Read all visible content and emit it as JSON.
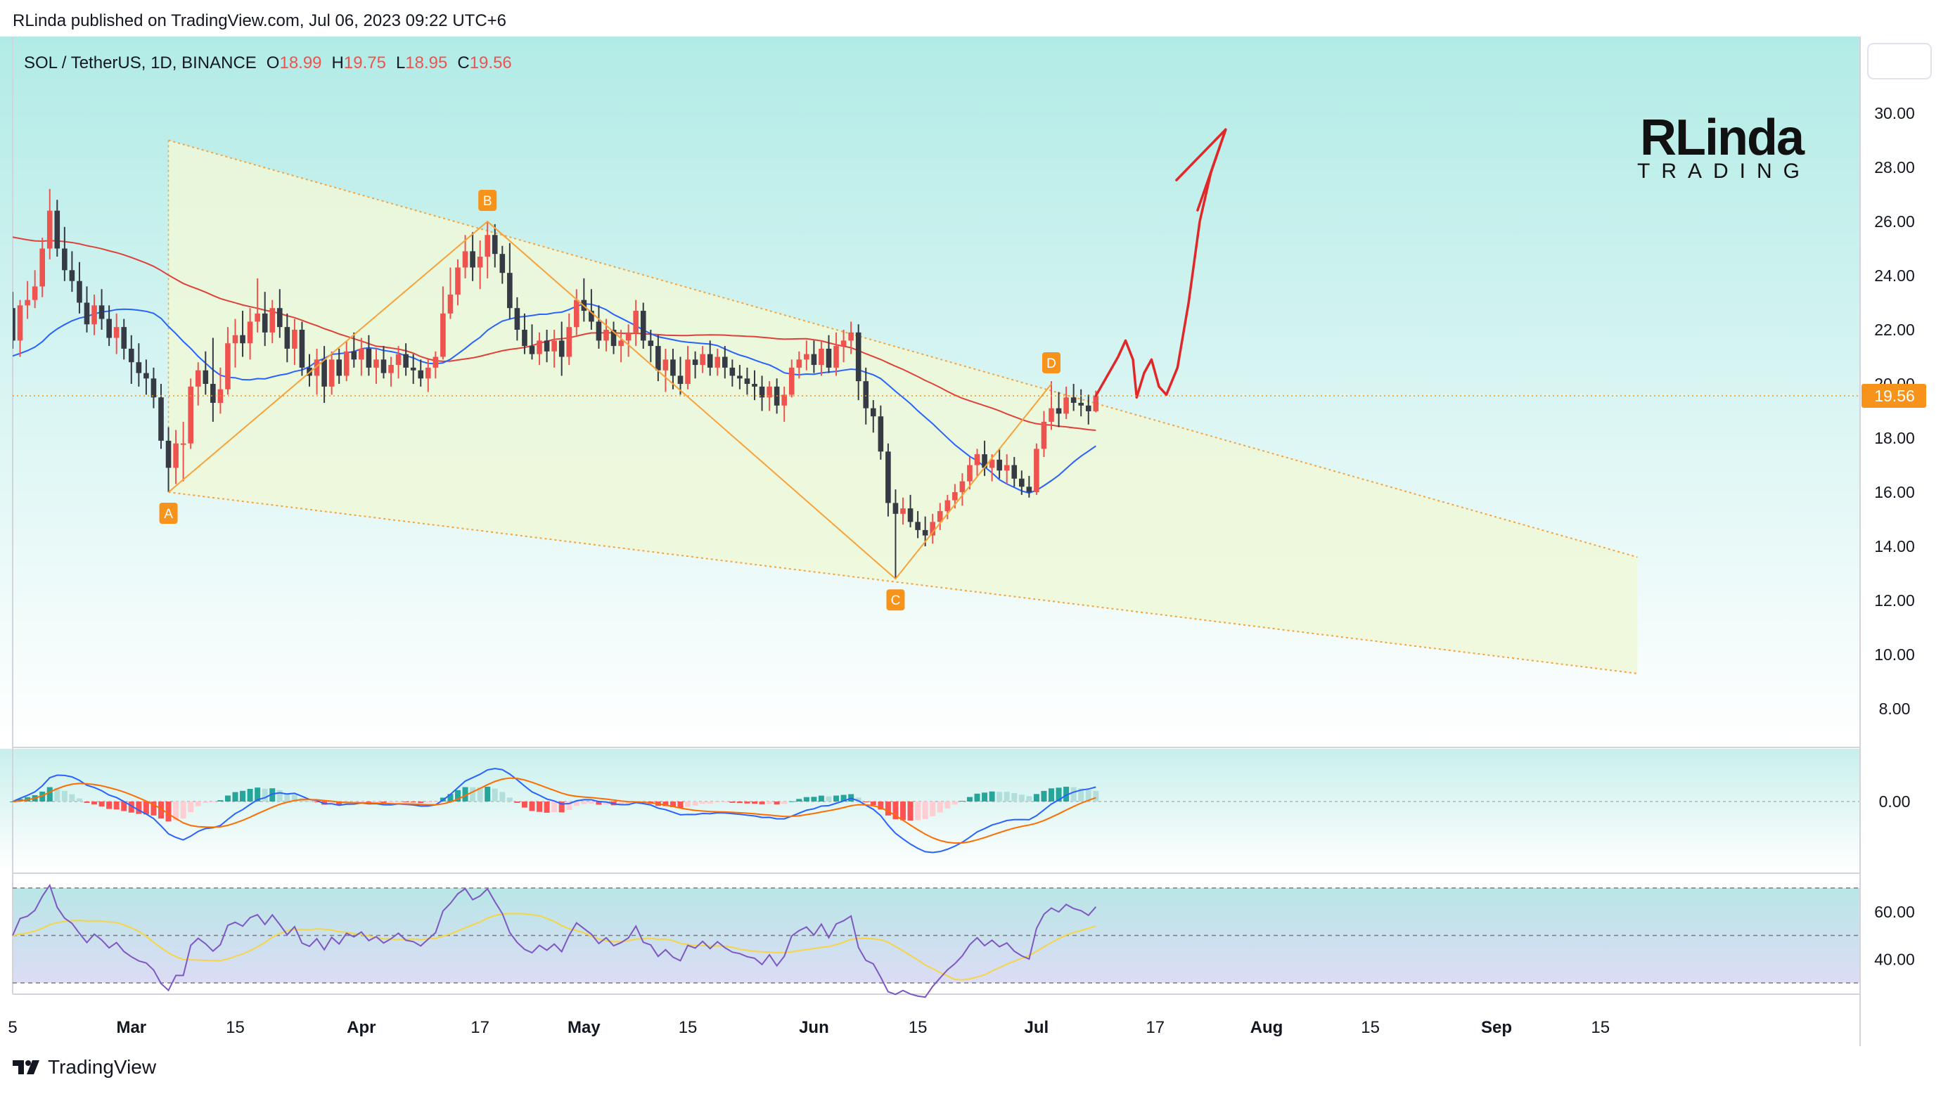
{
  "publisher_line": "RLinda published on TradingView.com, Jul 06, 2023 09:22 UTC+6",
  "footer": {
    "brand": "TradingView"
  },
  "watermark": {
    "line1": "RLinda",
    "line2": "TRADING"
  },
  "colors": {
    "bull": "#ef5350",
    "bear": "#363a45",
    "sma_red": "#e0403a",
    "sma_blue": "#2962ff",
    "pattern_line": "#f7a23b",
    "label_orange": "#f7931a",
    "wedge_fill": "#eef8d8",
    "arrow": "#e02828",
    "macd_line": "#2962ff",
    "signal_line": "#ff6d00",
    "rsi_line": "#7e57c2",
    "rsi_ma": "#f5d547",
    "price_tag": "#f7931a"
  },
  "chart_data": [
    {
      "type": "candlestick",
      "title": "SOL / TetherUS, 1D, BINANCE",
      "ohlc_header": {
        "O": "18.99",
        "H": "19.75",
        "L": "18.95",
        "C": "19.56"
      },
      "last_price_label": "19.56",
      "ylim": [
        6.5,
        33
      ],
      "y_ticks": [
        "8.00",
        "10.00",
        "12.00",
        "14.00",
        "16.00",
        "18.00",
        "20.00",
        "22.00",
        "24.00",
        "26.00",
        "28.00",
        "30.00"
      ],
      "x_ticks": [
        {
          "label": "5",
          "day": 0
        },
        {
          "label": "Mar",
          "day": 16
        },
        {
          "label": "15",
          "day": 30
        },
        {
          "label": "Apr",
          "day": 47
        },
        {
          "label": "17",
          "day": 63
        },
        {
          "label": "May",
          "day": 77
        },
        {
          "label": "15",
          "day": 91
        },
        {
          "label": "Jun",
          "day": 108
        },
        {
          "label": "15",
          "day": 122
        },
        {
          "label": "Jul",
          "day": 138
        },
        {
          "label": "17",
          "day": 154
        },
        {
          "label": "Aug",
          "day": 169
        },
        {
          "label": "15",
          "day": 183
        },
        {
          "label": "Sep",
          "day": 200
        },
        {
          "label": "15",
          "day": 214
        }
      ],
      "candles": [
        [
          0,
          22.8,
          23.4,
          21.3,
          21.6
        ],
        [
          1,
          21.6,
          23.1,
          21.0,
          22.9
        ],
        [
          2,
          22.9,
          23.8,
          22.4,
          23.1
        ],
        [
          3,
          23.1,
          24.2,
          22.8,
          23.6
        ],
        [
          4,
          23.6,
          25.4,
          23.2,
          25.0
        ],
        [
          5,
          25.0,
          27.2,
          24.6,
          26.4
        ],
        [
          6,
          26.4,
          26.8,
          24.7,
          25.0
        ],
        [
          7,
          25.0,
          25.8,
          23.8,
          24.2
        ],
        [
          8,
          24.2,
          24.9,
          23.4,
          23.8
        ],
        [
          9,
          23.8,
          24.5,
          22.6,
          23.0
        ],
        [
          10,
          23.0,
          23.6,
          21.9,
          22.2
        ],
        [
          11,
          22.2,
          23.3,
          21.8,
          22.9
        ],
        [
          12,
          22.9,
          23.5,
          22.0,
          22.4
        ],
        [
          13,
          22.4,
          22.9,
          21.4,
          21.7
        ],
        [
          14,
          21.7,
          22.6,
          21.1,
          22.1
        ],
        [
          15,
          22.1,
          22.4,
          20.9,
          21.3
        ],
        [
          16,
          21.3,
          21.8,
          20.0,
          20.8
        ],
        [
          17,
          20.8,
          21.5,
          19.9,
          20.4
        ],
        [
          18,
          20.4,
          20.9,
          19.6,
          20.2
        ],
        [
          19,
          20.2,
          20.6,
          19.1,
          19.5
        ],
        [
          20,
          19.5,
          20.0,
          17.6,
          17.9
        ],
        [
          21,
          17.9,
          18.4,
          16.0,
          16.9
        ],
        [
          22,
          16.9,
          18.3,
          16.3,
          17.8
        ],
        [
          23,
          17.8,
          18.6,
          16.4,
          17.8
        ],
        [
          24,
          17.8,
          20.2,
          17.6,
          19.9
        ],
        [
          25,
          19.9,
          20.8,
          19.2,
          20.5
        ],
        [
          26,
          20.5,
          21.2,
          19.6,
          20.0
        ],
        [
          27,
          20.0,
          21.7,
          18.6,
          19.3
        ],
        [
          28,
          19.3,
          20.6,
          18.9,
          19.8
        ],
        [
          29,
          19.8,
          22.1,
          19.6,
          21.5
        ],
        [
          30,
          21.5,
          22.4,
          20.6,
          21.8
        ],
        [
          31,
          21.8,
          22.7,
          21.0,
          21.5
        ],
        [
          32,
          21.5,
          22.8,
          20.9,
          22.3
        ],
        [
          33,
          22.3,
          23.9,
          21.9,
          22.6
        ],
        [
          34,
          22.6,
          23.4,
          21.4,
          21.9
        ],
        [
          35,
          21.9,
          23.1,
          21.5,
          22.8
        ],
        [
          36,
          22.8,
          23.5,
          21.7,
          22.1
        ],
        [
          37,
          22.1,
          22.6,
          20.8,
          21.3
        ],
        [
          38,
          21.3,
          22.4,
          20.7,
          22.0
        ],
        [
          39,
          22.0,
          22.3,
          20.3,
          20.6
        ],
        [
          40,
          20.6,
          21.1,
          19.9,
          20.3
        ],
        [
          41,
          20.3,
          21.3,
          19.6,
          20.9
        ],
        [
          42,
          20.9,
          21.4,
          19.3,
          19.9
        ],
        [
          43,
          19.9,
          21.2,
          19.6,
          20.9
        ],
        [
          44,
          20.9,
          21.3,
          20.0,
          20.3
        ],
        [
          45,
          20.3,
          21.6,
          20.1,
          21.2
        ],
        [
          46,
          21.2,
          21.9,
          20.6,
          20.9
        ],
        [
          47,
          20.9,
          21.7,
          20.3,
          21.3
        ],
        [
          48,
          21.3,
          21.8,
          20.3,
          20.6
        ],
        [
          49,
          20.6,
          21.3,
          20.0,
          20.9
        ],
        [
          50,
          20.9,
          21.4,
          20.2,
          20.4
        ],
        [
          51,
          20.4,
          21.0,
          19.9,
          20.7
        ],
        [
          52,
          20.7,
          21.4,
          20.2,
          21.1
        ],
        [
          53,
          21.1,
          21.5,
          20.3,
          20.6
        ],
        [
          54,
          20.6,
          21.1,
          20.0,
          20.5
        ],
        [
          55,
          20.5,
          20.9,
          19.9,
          20.2
        ],
        [
          56,
          20.2,
          20.9,
          19.7,
          20.6
        ],
        [
          57,
          20.6,
          21.2,
          20.2,
          21.0
        ],
        [
          58,
          21.0,
          23.6,
          20.9,
          22.6
        ],
        [
          59,
          22.6,
          24.3,
          22.4,
          23.3
        ],
        [
          60,
          23.3,
          24.6,
          22.9,
          24.3
        ],
        [
          61,
          24.3,
          25.5,
          23.9,
          24.9
        ],
        [
          62,
          24.9,
          25.6,
          23.8,
          24.3
        ],
        [
          63,
          24.3,
          25.3,
          23.5,
          24.7
        ],
        [
          64,
          24.7,
          26.0,
          23.9,
          25.5
        ],
        [
          65,
          25.5,
          25.9,
          24.3,
          24.8
        ],
        [
          66,
          24.8,
          25.1,
          23.7,
          24.1
        ],
        [
          67,
          24.1,
          25.2,
          22.4,
          22.8
        ],
        [
          68,
          22.8,
          23.2,
          21.6,
          22.0
        ],
        [
          69,
          22.0,
          22.6,
          21.1,
          21.4
        ],
        [
          70,
          21.4,
          22.2,
          20.9,
          21.1
        ],
        [
          71,
          21.1,
          21.9,
          20.7,
          21.6
        ],
        [
          72,
          21.6,
          22.0,
          20.8,
          21.2
        ],
        [
          73,
          21.2,
          22.0,
          20.6,
          21.6
        ],
        [
          74,
          21.6,
          22.3,
          20.3,
          21.0
        ],
        [
          75,
          21.0,
          22.6,
          20.7,
          22.1
        ],
        [
          76,
          22.1,
          23.5,
          21.8,
          23.1
        ],
        [
          77,
          23.1,
          23.9,
          22.3,
          22.7
        ],
        [
          78,
          22.7,
          23.5,
          22.0,
          22.3
        ],
        [
          79,
          22.3,
          22.9,
          21.3,
          21.6
        ],
        [
          80,
          21.6,
          22.4,
          21.2,
          22.0
        ],
        [
          81,
          22.0,
          22.3,
          21.1,
          21.4
        ],
        [
          82,
          21.4,
          22.0,
          20.8,
          21.6
        ],
        [
          83,
          21.6,
          22.2,
          21.0,
          21.9
        ],
        [
          84,
          21.9,
          23.1,
          21.4,
          22.7
        ],
        [
          85,
          22.7,
          23.0,
          21.3,
          21.6
        ],
        [
          86,
          21.6,
          22.0,
          20.8,
          21.4
        ],
        [
          87,
          21.4,
          21.8,
          20.1,
          20.5
        ],
        [
          88,
          20.5,
          21.3,
          19.7,
          20.9
        ],
        [
          89,
          20.9,
          21.3,
          19.8,
          20.3
        ],
        [
          90,
          20.3,
          21.0,
          19.6,
          20.0
        ],
        [
          91,
          20.0,
          21.4,
          19.8,
          20.9
        ],
        [
          92,
          20.9,
          21.2,
          20.2,
          20.7
        ],
        [
          93,
          20.7,
          21.4,
          20.4,
          21.1
        ],
        [
          94,
          21.1,
          21.6,
          20.3,
          20.6
        ],
        [
          95,
          20.6,
          21.3,
          20.3,
          21.0
        ],
        [
          96,
          21.0,
          21.4,
          20.2,
          20.6
        ],
        [
          97,
          20.6,
          20.9,
          19.9,
          20.3
        ],
        [
          98,
          20.3,
          20.7,
          19.8,
          20.2
        ],
        [
          99,
          20.2,
          20.6,
          19.6,
          20.0
        ],
        [
          100,
          20.0,
          20.5,
          19.4,
          19.9
        ],
        [
          101,
          19.9,
          20.3,
          19.0,
          19.5
        ],
        [
          102,
          19.5,
          20.1,
          19.0,
          19.9
        ],
        [
          103,
          19.9,
          20.2,
          18.9,
          19.2
        ],
        [
          104,
          19.2,
          19.9,
          18.6,
          19.6
        ],
        [
          105,
          19.6,
          20.9,
          19.5,
          20.6
        ],
        [
          106,
          20.6,
          21.2,
          20.2,
          20.9
        ],
        [
          107,
          20.9,
          21.6,
          20.5,
          21.1
        ],
        [
          108,
          21.1,
          21.6,
          20.4,
          20.7
        ],
        [
          109,
          20.7,
          21.6,
          20.3,
          21.3
        ],
        [
          110,
          21.3,
          21.8,
          20.4,
          20.6
        ],
        [
          111,
          20.6,
          21.9,
          20.3,
          21.4
        ],
        [
          112,
          21.4,
          22.0,
          20.8,
          21.6
        ],
        [
          113,
          21.6,
          22.3,
          21.1,
          21.9
        ],
        [
          114,
          21.9,
          22.2,
          19.4,
          20.1
        ],
        [
          115,
          20.1,
          20.6,
          18.5,
          19.1
        ],
        [
          116,
          19.1,
          19.4,
          18.2,
          18.8
        ],
        [
          117,
          18.8,
          19.2,
          17.2,
          17.5
        ],
        [
          118,
          17.5,
          17.8,
          15.1,
          15.6
        ],
        [
          119,
          15.6,
          16.1,
          12.8,
          15.2
        ],
        [
          120,
          15.2,
          15.8,
          14.8,
          15.4
        ],
        [
          121,
          15.4,
          15.9,
          14.7,
          14.9
        ],
        [
          122,
          14.9,
          15.3,
          14.3,
          14.6
        ],
        [
          123,
          14.6,
          15.1,
          14.0,
          14.4
        ],
        [
          124,
          14.4,
          15.2,
          14.1,
          14.9
        ],
        [
          125,
          14.9,
          15.6,
          14.6,
          15.3
        ],
        [
          126,
          15.3,
          15.9,
          15.0,
          15.7
        ],
        [
          127,
          15.7,
          16.3,
          15.4,
          16.0
        ],
        [
          128,
          16.0,
          16.7,
          15.5,
          16.4
        ],
        [
          129,
          16.4,
          17.3,
          16.1,
          17.0
        ],
        [
          130,
          17.0,
          17.6,
          16.6,
          17.4
        ],
        [
          131,
          17.4,
          17.9,
          16.6,
          16.9
        ],
        [
          132,
          16.9,
          17.4,
          16.4,
          17.2
        ],
        [
          133,
          17.2,
          17.6,
          16.5,
          16.8
        ],
        [
          134,
          16.8,
          17.4,
          16.3,
          17.0
        ],
        [
          135,
          17.0,
          17.3,
          16.2,
          16.5
        ],
        [
          136,
          16.5,
          16.8,
          15.9,
          16.2
        ],
        [
          137,
          16.2,
          16.6,
          15.8,
          16.0
        ],
        [
          138,
          16.0,
          17.8,
          15.9,
          17.6
        ],
        [
          139,
          17.6,
          19.0,
          17.3,
          18.6
        ],
        [
          140,
          18.6,
          20.1,
          18.3,
          19.1
        ],
        [
          141,
          19.1,
          19.7,
          18.4,
          18.9
        ],
        [
          142,
          18.9,
          19.9,
          18.7,
          19.5
        ],
        [
          143,
          19.5,
          20.0,
          19.0,
          19.3
        ],
        [
          144,
          19.3,
          19.8,
          18.8,
          19.2
        ],
        [
          145,
          19.2,
          19.6,
          18.5,
          18.99
        ],
        [
          146,
          18.99,
          19.75,
          18.95,
          19.56
        ]
      ],
      "patterns": {
        "abcd": [
          {
            "label": "A",
            "day": 21,
            "price": 16.0
          },
          {
            "label": "B",
            "day": 64,
            "price": 26.0
          },
          {
            "label": "C",
            "day": 119,
            "price": 12.8
          },
          {
            "label": "D",
            "day": 140,
            "price": 20.0
          }
        ],
        "wedge_upper": [
          [
            21,
            29.0
          ],
          [
            219,
            13.6
          ]
        ],
        "wedge_lower": [
          [
            21,
            16.0
          ],
          [
            219,
            9.3
          ]
        ],
        "projection_arrow": [
          [
            146,
            19.56
          ],
          [
            149,
            21.0
          ],
          [
            150,
            21.6
          ],
          [
            151,
            20.9
          ],
          [
            151.5,
            19.5
          ],
          [
            152.5,
            20.4
          ],
          [
            153.5,
            20.9
          ],
          [
            154.5,
            19.9
          ],
          [
            155.5,
            19.6
          ],
          [
            157,
            20.6
          ],
          [
            158.5,
            23.0
          ],
          [
            160,
            26.0
          ],
          [
            161.5,
            27.8
          ],
          [
            162.5,
            28.6
          ],
          [
            163.5,
            29.4
          ]
        ]
      }
    },
    {
      "type": "macd",
      "zero_label": "0.00",
      "ylim": [
        -2.0,
        1.3
      ]
    },
    {
      "type": "rsi",
      "y_ticks": [
        "40.00",
        "60.00"
      ],
      "bands": [
        30,
        50,
        70
      ],
      "ylim": [
        25,
        74
      ]
    }
  ]
}
